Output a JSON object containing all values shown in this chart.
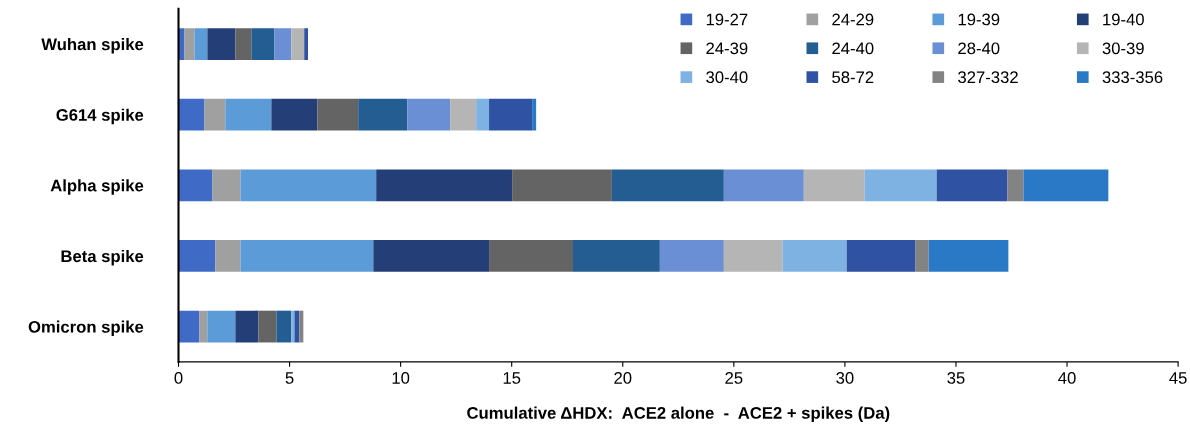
{
  "chart_data": {
    "type": "bar",
    "orientation": "horizontal",
    "stacked": true,
    "categories": [
      "Wuhan spike",
      "G614 spike",
      "Alpha spike",
      "Beta spike",
      "Omicron spike"
    ],
    "xlabel": "Cumulative ΔHDX:  ACE2 alone  -  ACE2 + spikes (Da)",
    "xlim": [
      0,
      45
    ],
    "xticks": [
      0,
      5,
      10,
      15,
      20,
      25,
      30,
      35,
      40,
      45
    ],
    "grid": false,
    "legend": "top right",
    "series": [
      {
        "name": "19-27",
        "color": "#3f6ac6",
        "values": [
          0.27,
          1.17,
          1.53,
          1.66,
          0.94
        ]
      },
      {
        "name": "24-29",
        "color": "#a0a0a0",
        "values": [
          0.45,
          0.94,
          1.26,
          1.13,
          0.36
        ]
      },
      {
        "name": "19-39",
        "color": "#5a9bd8",
        "values": [
          0.58,
          2.07,
          6.11,
          5.98,
          1.26
        ]
      },
      {
        "name": "19-40",
        "color": "#243f78",
        "values": [
          1.26,
          2.07,
          6.12,
          5.21,
          1.04
        ]
      },
      {
        "name": "24-39",
        "color": "#646464",
        "values": [
          0.72,
          1.84,
          4.49,
          3.78,
          0.81
        ]
      },
      {
        "name": "24-40",
        "color": "#235d92",
        "values": [
          1.04,
          2.21,
          5.04,
          3.91,
          0.67
        ]
      },
      {
        "name": "28-40",
        "color": "#6b8fd4",
        "values": [
          0.76,
          1.93,
          3.6,
          2.88,
          0
        ]
      },
      {
        "name": "30-39",
        "color": "#b5b5b5",
        "values": [
          0.58,
          1.17,
          2.74,
          2.65,
          0
        ]
      },
      {
        "name": "30-40",
        "color": "#7db2e2",
        "values": [
          0,
          0.58,
          3.24,
          2.88,
          0.14
        ]
      },
      {
        "name": "58-72",
        "color": "#2f52a2",
        "values": [
          0.17,
          1.94,
          3.19,
          3.1,
          0.22
        ]
      },
      {
        "name": "327-332",
        "color": "#838383",
        "values": [
          0,
          0,
          0.72,
          0.59,
          0.18
        ]
      },
      {
        "name": "333-356",
        "color": "#2a79c6",
        "values": [
          0,
          0.18,
          3.82,
          3.59,
          0
        ]
      }
    ]
  }
}
